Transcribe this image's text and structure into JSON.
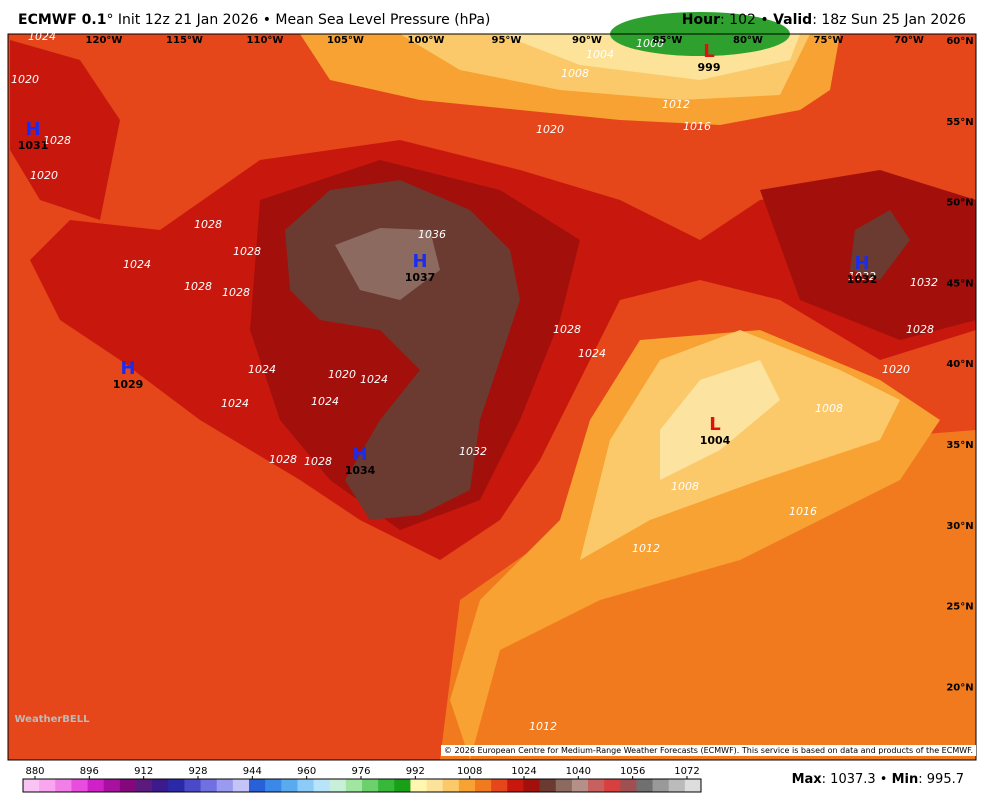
{
  "header": {
    "model": "ECMWF 0.1",
    "init": "° Init 12z 21 Jan 2026 • Mean Sea Level Pressure (hPa)",
    "hour_label": "Hour",
    "hour_text": ": 102 • ",
    "valid_label": "Valid",
    "valid_text": ": 18z Sun 25 Jan 2026"
  },
  "map": {
    "longitudes": [
      "120°W",
      "115°W",
      "110°W",
      "105°W",
      "100°W",
      "95°W",
      "90°W",
      "85°W",
      "80°W",
      "75°W",
      "70°W"
    ],
    "latitudes": [
      "60°N",
      "55°N",
      "50°N",
      "45°N",
      "40°N",
      "35°N",
      "30°N",
      "25°N",
      "20°N"
    ],
    "centers": [
      {
        "symbol": "H",
        "value": 1031
      },
      {
        "symbol": "H",
        "value": 1037
      },
      {
        "symbol": "H",
        "value": 1029
      },
      {
        "symbol": "H",
        "value": 1034
      },
      {
        "symbol": "H",
        "value": 1032
      },
      {
        "symbol": "L",
        "value": 999
      },
      {
        "symbol": "L",
        "value": 1004
      }
    ],
    "contour_labels": [
      1024,
      1000,
      1004,
      1008,
      1012,
      1016,
      1020,
      1020,
      1028,
      1020,
      1028,
      1028,
      1024,
      1028,
      1028,
      1036,
      1028,
      1024,
      1024,
      1020,
      1024,
      1024,
      1024,
      1028,
      1028,
      1032,
      1032,
      1032,
      1028,
      1020,
      1008,
      1008,
      1016,
      1012,
      1012
    ]
  },
  "colorbar": {
    "ticks": [
      880,
      896,
      912,
      928,
      944,
      960,
      976,
      992,
      1008,
      1024,
      1040,
      1056,
      1072
    ]
  },
  "stats": {
    "max_label": "Max",
    "max_text": ": 1037.3 • ",
    "min_label": "Min",
    "min_text": ": 995.7"
  },
  "credit": "© 2026 European Centre for Medium-Range Weather Forecasts (ECMWF). This service is based on data and products of the ECMWF.",
  "logo": "WeatherBELL"
}
